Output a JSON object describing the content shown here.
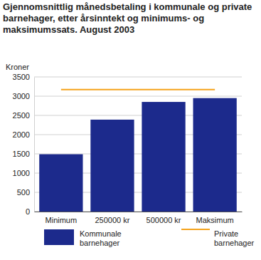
{
  "chart_data": {
    "type": "bar",
    "title": "Gjennomsnittlig månedsbetaling i kommunale og private barnehager, etter årsinntekt og minimums- og maksimumssats. August 2003",
    "y_label": "Kroner",
    "categories": [
      "Minimum",
      "250000 kr",
      "500000 kr",
      "Maksimum"
    ],
    "series": [
      {
        "name": "Kommunale barnehager",
        "type": "bar",
        "color": "#1c2a8c",
        "values": [
          1490,
          2390,
          2850,
          2950
        ]
      },
      {
        "name": "Private barnehager",
        "type": "line",
        "color": "#f5a31c",
        "values": [
          3170,
          3170,
          3170,
          3170
        ]
      }
    ],
    "ylim": [
      0,
      3500
    ],
    "yticks": [
      0,
      500,
      1000,
      1500,
      2000,
      2500,
      3000,
      3500
    ],
    "grid": true,
    "legend": "bottom"
  }
}
